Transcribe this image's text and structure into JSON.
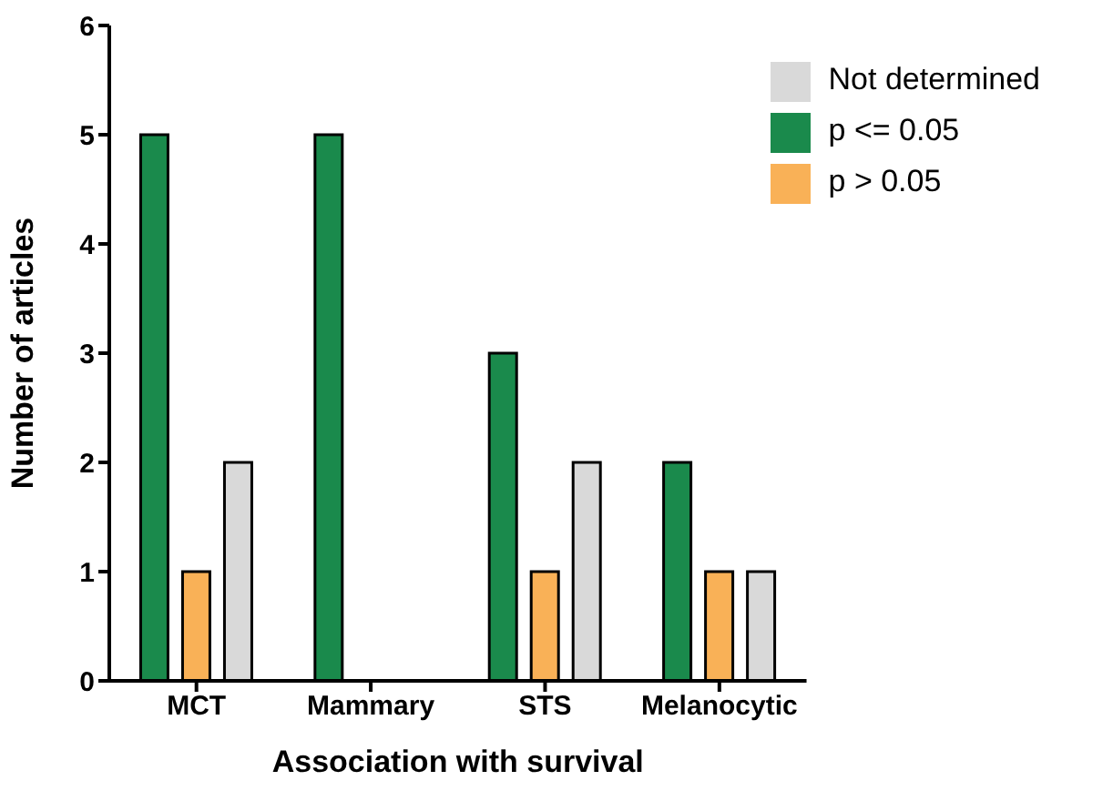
{
  "chart_data": {
    "type": "bar",
    "xlabel": "Association with survival",
    "ylabel": "Number of articles",
    "categories": [
      "MCT",
      "Mammary",
      "STS",
      "Melanocytic"
    ],
    "series": [
      {
        "name": "p <= 0.05",
        "color": "#1a8a4c",
        "values": [
          5,
          5,
          3,
          2
        ]
      },
      {
        "name": "p > 0.05",
        "color": "#f9b157",
        "values": [
          1,
          0,
          1,
          1
        ]
      },
      {
        "name": "Not determined",
        "color": "#d9d9d9",
        "values": [
          2,
          0,
          2,
          1
        ]
      }
    ],
    "ylim": [
      0,
      6
    ],
    "yticks": [
      0,
      1,
      2,
      3,
      4,
      5,
      6
    ],
    "grid": false,
    "legend": "top right"
  }
}
